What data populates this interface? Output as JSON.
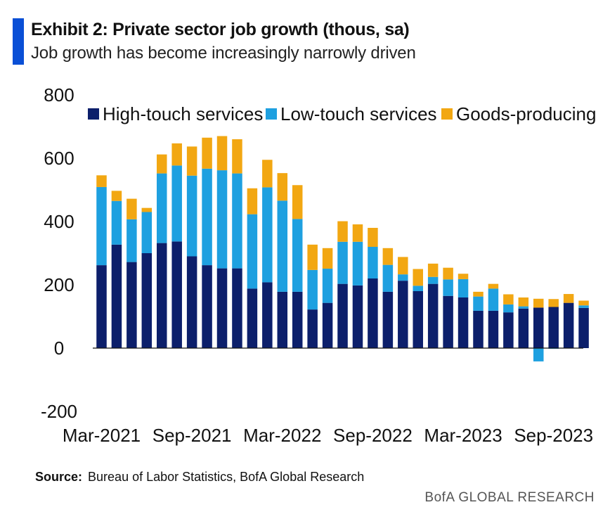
{
  "header": {
    "title": "Exhibit 2: Private sector job growth (thous, sa)",
    "subtitle": "Job growth has become increasingly narrowly driven"
  },
  "footer": {
    "source_label": "Source:",
    "source_text": "Bureau of Labor Statistics, BofA Global Research",
    "brand": "BofA GLOBAL RESEARCH"
  },
  "colors": {
    "accent": "#0a4fd6",
    "high_touch": "#0c1f6b",
    "low_touch": "#1ea0e0",
    "goods": "#f2a712"
  },
  "chart_data": {
    "type": "bar",
    "stacked": true,
    "title": "Exhibit 2: Private sector job growth (thous, sa)",
    "subtitle": "Job growth has become increasingly narrowly driven",
    "ylim": [
      -200,
      800
    ],
    "yticks": [
      -200,
      0,
      200,
      400,
      600,
      800
    ],
    "xtick_labels": [
      "Mar-2021",
      "Sep-2021",
      "Mar-2022",
      "Sep-2022",
      "Mar-2023",
      "Sep-2023"
    ],
    "legend_position": "top-right",
    "categories": [
      "Mar-2021",
      "Apr-2021",
      "May-2021",
      "Jun-2021",
      "Jul-2021",
      "Aug-2021",
      "Sep-2021",
      "Oct-2021",
      "Nov-2021",
      "Dec-2021",
      "Jan-2022",
      "Feb-2022",
      "Mar-2022",
      "Apr-2022",
      "May-2022",
      "Jun-2022",
      "Jul-2022",
      "Aug-2022",
      "Sep-2022",
      "Oct-2022",
      "Nov-2022",
      "Dec-2022",
      "Jan-2023",
      "Feb-2023",
      "Mar-2023",
      "Apr-2023",
      "May-2023",
      "Jun-2023",
      "Jul-2023",
      "Aug-2023",
      "Sep-2023",
      "Oct-2023",
      "Nov-2023"
    ],
    "series": [
      {
        "name": "High-touch services",
        "color": "#0c1f6b",
        "values": [
          262,
          327,
          272,
          300,
          332,
          337,
          290,
          262,
          252,
          252,
          188,
          208,
          178,
          178,
          122,
          143,
          203,
          198,
          220,
          178,
          213,
          180,
          203,
          165,
          160,
          118,
          118,
          113,
          125,
          128,
          130,
          143,
          127
        ]
      },
      {
        "name": "Low-touch services",
        "color": "#1ea0e0",
        "values": [
          247,
          138,
          135,
          130,
          220,
          240,
          255,
          305,
          310,
          300,
          235,
          300,
          288,
          230,
          125,
          108,
          133,
          138,
          100,
          85,
          20,
          17,
          22,
          52,
          58,
          45,
          70,
          25,
          7,
          -42,
          -2,
          0,
          8
        ]
      },
      {
        "name": "Goods-producing",
        "color": "#f2a712",
        "values": [
          37,
          32,
          65,
          13,
          60,
          70,
          92,
          98,
          108,
          108,
          82,
          87,
          87,
          107,
          80,
          65,
          65,
          55,
          60,
          53,
          55,
          53,
          42,
          37,
          17,
          15,
          15,
          32,
          28,
          28,
          25,
          28,
          15
        ]
      }
    ]
  }
}
